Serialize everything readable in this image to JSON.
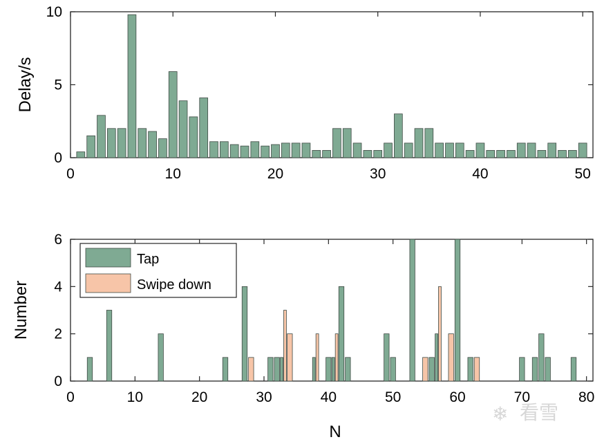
{
  "colors": {
    "tap": "#7faa93",
    "swipe": "#f7c5a8",
    "bar_edge": "#3f4a44",
    "axis": "#262626",
    "watermark": "#d7d7d7"
  },
  "watermark_text": "看雪",
  "chart_data": [
    {
      "type": "bar",
      "ylabel": "Delay/s",
      "xlabel": "",
      "xlim": [
        0,
        51
      ],
      "ylim": [
        0,
        10
      ],
      "xticks": [
        0,
        10,
        20,
        30,
        40,
        50
      ],
      "yticks": [
        0,
        5,
        10
      ],
      "x": [
        1,
        2,
        3,
        4,
        5,
        6,
        7,
        8,
        9,
        10,
        11,
        12,
        13,
        14,
        15,
        16,
        17,
        18,
        19,
        20,
        21,
        22,
        23,
        24,
        25,
        26,
        27,
        28,
        29,
        30,
        31,
        32,
        33,
        34,
        35,
        36,
        37,
        38,
        39,
        40,
        41,
        42,
        43,
        44,
        45,
        46,
        47,
        48,
        49,
        50
      ],
      "values": [
        0.4,
        1.5,
        2.9,
        2.0,
        2.0,
        9.8,
        2.0,
        1.8,
        1.3,
        5.9,
        3.9,
        2.8,
        4.1,
        1.1,
        1.1,
        0.9,
        0.8,
        1.1,
        0.8,
        0.9,
        1.0,
        1.0,
        1.0,
        0.5,
        0.5,
        2.0,
        2.0,
        1.0,
        0.5,
        0.5,
        1.0,
        3.0,
        1.0,
        2.0,
        2.0,
        1.0,
        1.0,
        1.0,
        0.5,
        1.0,
        0.5,
        0.5,
        0.5,
        1.0,
        1.0,
        0.5,
        1.0,
        0.5,
        0.5,
        1.0
      ]
    },
    {
      "type": "bar",
      "xlabel": "N",
      "ylabel": "Number",
      "xlim": [
        0,
        81
      ],
      "ylim": [
        0,
        6
      ],
      "xticks": [
        0,
        10,
        20,
        30,
        40,
        50,
        60,
        70,
        80
      ],
      "yticks": [
        0,
        2,
        4,
        6
      ],
      "legend_position": "top-left",
      "series": [
        {
          "name": "Tap",
          "x": [
            3,
            6,
            14,
            24,
            27,
            31,
            32,
            33,
            38,
            40,
            41,
            42,
            43,
            49,
            50,
            53,
            56,
            57,
            60,
            62,
            70,
            72,
            73,
            74,
            78
          ],
          "values": [
            1,
            3,
            2,
            1,
            4,
            1,
            1,
            1,
            1,
            1,
            1,
            4,
            1,
            2,
            1,
            6,
            1,
            2,
            6,
            1,
            1,
            1,
            2,
            1,
            1
          ]
        },
        {
          "name": "Swipe down",
          "x": [
            28,
            33,
            34,
            38,
            41,
            55,
            57,
            59,
            63
          ],
          "values": [
            1,
            3,
            2,
            2,
            2,
            1,
            4,
            2,
            1
          ]
        }
      ]
    }
  ]
}
